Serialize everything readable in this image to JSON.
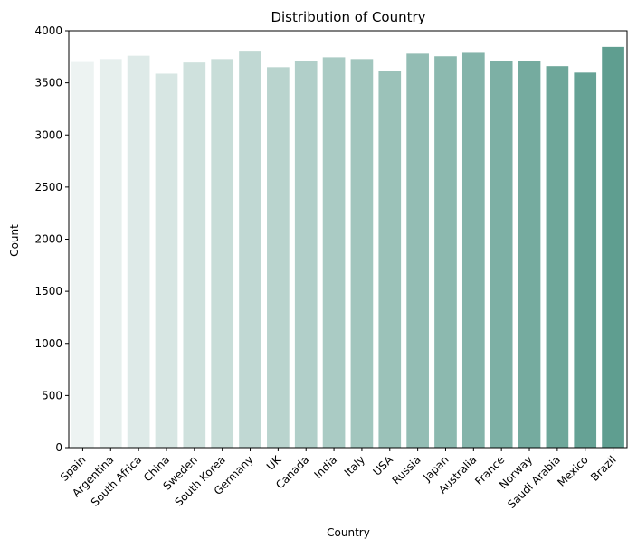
{
  "chart_data": {
    "type": "bar",
    "title": "Distribution of Country",
    "xlabel": "Country",
    "ylabel": "Count",
    "ylim": [
      0,
      4000
    ],
    "yticks": [
      0,
      500,
      1000,
      1500,
      2000,
      2500,
      3000,
      3500,
      4000
    ],
    "categories": [
      "Spain",
      "Argentina",
      "South Africa",
      "China",
      "Sweden",
      "South Korea",
      "Germany",
      "UK",
      "Canada",
      "India",
      "Italy",
      "USA",
      "Russia",
      "Japan",
      "Australia",
      "France",
      "Norway",
      "Saudi Arabia",
      "Mexico",
      "Brazil"
    ],
    "values": [
      3700,
      3728,
      3760,
      3588,
      3695,
      3728,
      3808,
      3650,
      3710,
      3745,
      3728,
      3615,
      3780,
      3755,
      3788,
      3712,
      3712,
      3660,
      3598,
      3845
    ],
    "colors": {
      "start": "#edf3f2",
      "end": "#5f9e90"
    },
    "grid": false,
    "legend": "none"
  }
}
